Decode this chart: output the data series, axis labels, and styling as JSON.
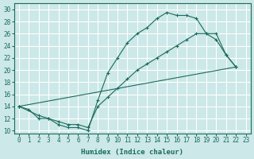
{
  "xlabel": "Humidex (Indice chaleur)",
  "bg_color": "#cce8e8",
  "grid_color": "#ffffff",
  "line_color": "#1a6b5a",
  "xlim": [
    -0.5,
    23.5
  ],
  "ylim": [
    9.5,
    31
  ],
  "xticks": [
    0,
    1,
    2,
    3,
    4,
    5,
    6,
    7,
    8,
    9,
    10,
    11,
    12,
    13,
    14,
    15,
    16,
    17,
    18,
    19,
    20,
    21,
    22,
    23
  ],
  "yticks": [
    10,
    12,
    14,
    16,
    18,
    20,
    22,
    24,
    26,
    28,
    30
  ],
  "line1_x": [
    0,
    1,
    2,
    3,
    4,
    5,
    6,
    7,
    8,
    9,
    10,
    11,
    12,
    13,
    14,
    15,
    16,
    17,
    18,
    19,
    20,
    21,
    22
  ],
  "line1_y": [
    14,
    13.5,
    12,
    12,
    11,
    10.5,
    10.5,
    10,
    15,
    19.5,
    22,
    24.5,
    26,
    27,
    28.5,
    29.5,
    29,
    29,
    28.5,
    26,
    25,
    22.5,
    20.5
  ],
  "line2_x": [
    0,
    2,
    3,
    4,
    5,
    6,
    7,
    8,
    9,
    10,
    11,
    12,
    13,
    14,
    15,
    16,
    17,
    18,
    19,
    20,
    21,
    22
  ],
  "line2_y": [
    14,
    12.5,
    12,
    11.5,
    11,
    11,
    10.5,
    14,
    15.5,
    17,
    18.5,
    20,
    21,
    22,
    23,
    24,
    25,
    26,
    26,
    26,
    22.5,
    20.5
  ],
  "line3_x": [
    0,
    22
  ],
  "line3_y": [
    14,
    20.5
  ]
}
